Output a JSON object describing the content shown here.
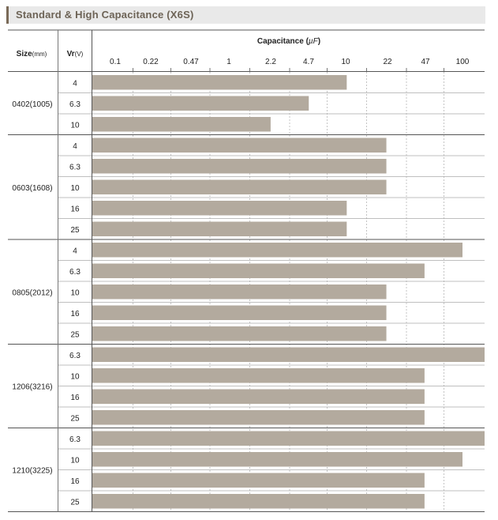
{
  "page_title": "Standard & High Capacitance (X6S)",
  "chart_data": {
    "type": "bar",
    "orientation": "horizontal",
    "title": "Standard & High Capacitance (X6S)",
    "row_header_size": "Size",
    "row_header_size_unit": "(mm)",
    "row_header_voltage": "Vr",
    "row_header_voltage_unit": "(V)",
    "xlabel": "Capacitance (µF)",
    "xlabel_prefix": "Capacitance (",
    "xlabel_unit": "µF",
    "xlabel_suffix": ")",
    "x_ticks": [
      "0.1",
      "0.22",
      "0.47",
      "1",
      "2.2",
      "4.7",
      "10",
      "22",
      "47",
      "100"
    ],
    "bar_color": "#b3aa9e",
    "groups": [
      {
        "size": "0402(1005)",
        "rows": [
          {
            "voltage": "4",
            "max_uF": 10
          },
          {
            "voltage": "6.3",
            "max_uF": 4.7
          },
          {
            "voltage": "10",
            "max_uF": 2.2
          }
        ]
      },
      {
        "size": "0603(1608)",
        "rows": [
          {
            "voltage": "4",
            "max_uF": 22
          },
          {
            "voltage": "6.3",
            "max_uF": 22
          },
          {
            "voltage": "10",
            "max_uF": 22
          },
          {
            "voltage": "16",
            "max_uF": 10
          },
          {
            "voltage": "25",
            "max_uF": 10
          }
        ]
      },
      {
        "size": "0805(2012)",
        "rows": [
          {
            "voltage": "4",
            "max_uF": 100
          },
          {
            "voltage": "6.3",
            "max_uF": 47
          },
          {
            "voltage": "10",
            "max_uF": 22
          },
          {
            "voltage": "16",
            "max_uF": 22
          },
          {
            "voltage": "25",
            "max_uF": 22
          }
        ]
      },
      {
        "size": "1206(3216)",
        "rows": [
          {
            "voltage": "6.3",
            "max_uF": 220
          },
          {
            "voltage": "10",
            "max_uF": 47
          },
          {
            "voltage": "16",
            "max_uF": 47
          },
          {
            "voltage": "25",
            "max_uF": 47
          }
        ]
      },
      {
        "size": "1210(3225)",
        "rows": [
          {
            "voltage": "6.3",
            "max_uF": 220
          },
          {
            "voltage": "10",
            "max_uF": 100
          },
          {
            "voltage": "16",
            "max_uF": 47
          },
          {
            "voltage": "25",
            "max_uF": 47
          }
        ]
      }
    ]
  }
}
